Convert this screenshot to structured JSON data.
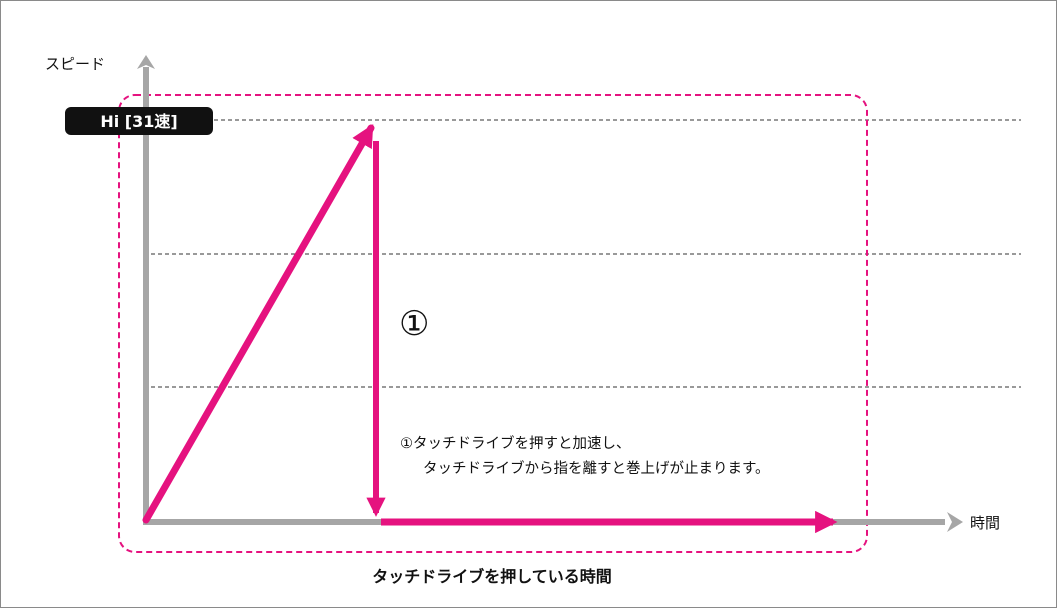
{
  "axes": {
    "y_label": "スピード",
    "x_label": "時間"
  },
  "max_speed_label": "Hi [31速]",
  "step_marker": "①",
  "note": {
    "line1": "①タッチドライブを押すと加速し、",
    "line2": "タッチドライブから指を離すと巻上げが止まります。"
  },
  "caption": "タッチドライブを押している時間",
  "colors": {
    "accent": "#e5127f",
    "axis": "#a6a6a6",
    "label_bg": "#111111",
    "label_text": "#ffffff"
  }
}
